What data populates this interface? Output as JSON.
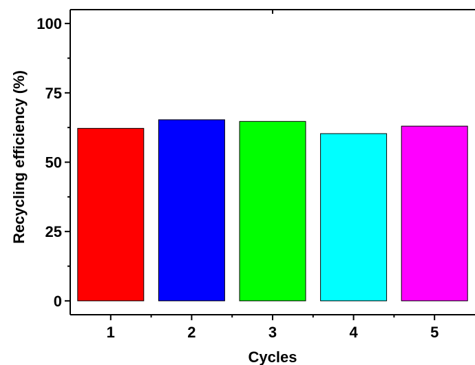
{
  "chart_data": {
    "type": "bar",
    "title": "",
    "xlabel": "Cycles",
    "ylabel": "Recycling efficiency (%)",
    "categories": [
      "1",
      "2",
      "3",
      "4",
      "5"
    ],
    "values": [
      62.2,
      65.3,
      64.7,
      60.3,
      63.0
    ],
    "colors": [
      "#ff0000",
      "#0000ff",
      "#00ff00",
      "#00ffff",
      "#ff00ff"
    ],
    "ylim": [
      -5,
      105
    ],
    "yticks": [
      "0",
      "25",
      "50",
      "75",
      "100"
    ],
    "grid": false,
    "legend": "none"
  }
}
